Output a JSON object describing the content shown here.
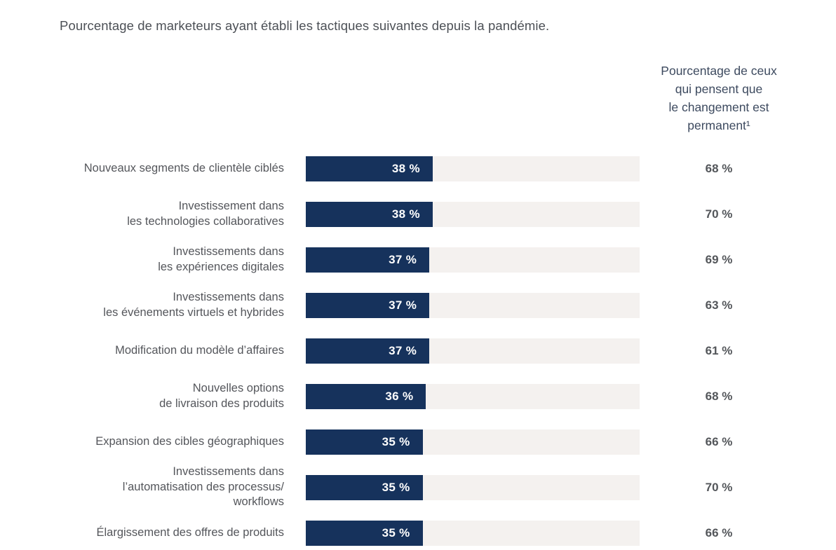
{
  "title": "Pourcentage de marketeurs ayant établi les tactiques suivantes depuis la pandémie.",
  "right_header": "Pourcentage de ceux\nqui pensent que\nle changement est\npermanent¹",
  "colors": {
    "bar_fill": "#16325c",
    "bar_track": "#f4f1ef",
    "bar_value_text": "#ffffff",
    "label_text": "#54565b",
    "permanent_value_text": "#53565a",
    "title_text": "#4c5056",
    "header_text": "#3d4a5f"
  },
  "rows": [
    {
      "label": "Nouveaux segments de clientèle ciblés",
      "value": 38,
      "value_label": "38 %",
      "permanent_label": "68 %"
    },
    {
      "label": "Investissement dans\nles technologies collaboratives",
      "value": 38,
      "value_label": "38 %",
      "permanent_label": "70 %"
    },
    {
      "label": "Investissements dans\nles expériences digitales",
      "value": 37,
      "value_label": "37 %",
      "permanent_label": "69 %"
    },
    {
      "label": "Investissements dans\nles événements virtuels et hybrides",
      "value": 37,
      "value_label": "37 %",
      "permanent_label": "63 %"
    },
    {
      "label": "Modification du modèle d’affaires",
      "value": 37,
      "value_label": "37 %",
      "permanent_label": "61 %"
    },
    {
      "label": "Nouvelles options\nde livraison des produits",
      "value": 36,
      "value_label": "36 %",
      "permanent_label": "68 %"
    },
    {
      "label": "Expansion des cibles géographiques",
      "value": 35,
      "value_label": "35 %",
      "permanent_label": "66 %"
    },
    {
      "label": "Investissements dans\nl’automatisation des processus/\nworkflows",
      "value": 35,
      "value_label": "35 %",
      "permanent_label": "70 %"
    },
    {
      "label": "Élargissement des offres de produits",
      "value": 35,
      "value_label": "35 %",
      "permanent_label": "66 %"
    }
  ],
  "chart_data": {
    "type": "bar",
    "orientation": "horizontal",
    "title": "Pourcentage de marketeurs ayant établi les tactiques suivantes depuis la pandémie.",
    "categories": [
      "Nouveaux segments de clientèle ciblés",
      "Investissement dans les technologies collaboratives",
      "Investissements dans les expériences digitales",
      "Investissements dans les événements virtuels et hybrides",
      "Modification du modèle d’affaires",
      "Nouvelles options de livraison des produits",
      "Expansion des cibles géographiques",
      "Investissements dans l’automatisation des processus/workflows",
      "Élargissement des offres de produits"
    ],
    "series": [
      {
        "name": "Pourcentage de marketeurs ayant établi la tactique",
        "values": [
          38,
          38,
          37,
          37,
          37,
          36,
          35,
          35,
          35
        ],
        "display": "bar"
      },
      {
        "name": "Pourcentage de ceux qui pensent que le changement est permanent¹",
        "values": [
          68,
          70,
          69,
          63,
          61,
          68,
          66,
          70,
          66
        ],
        "display": "text-column"
      }
    ],
    "xlabel": "",
    "ylabel": "",
    "xlim": [
      0,
      100
    ],
    "grid": false,
    "legend_position": "none",
    "value_label_format": "{v} %"
  }
}
